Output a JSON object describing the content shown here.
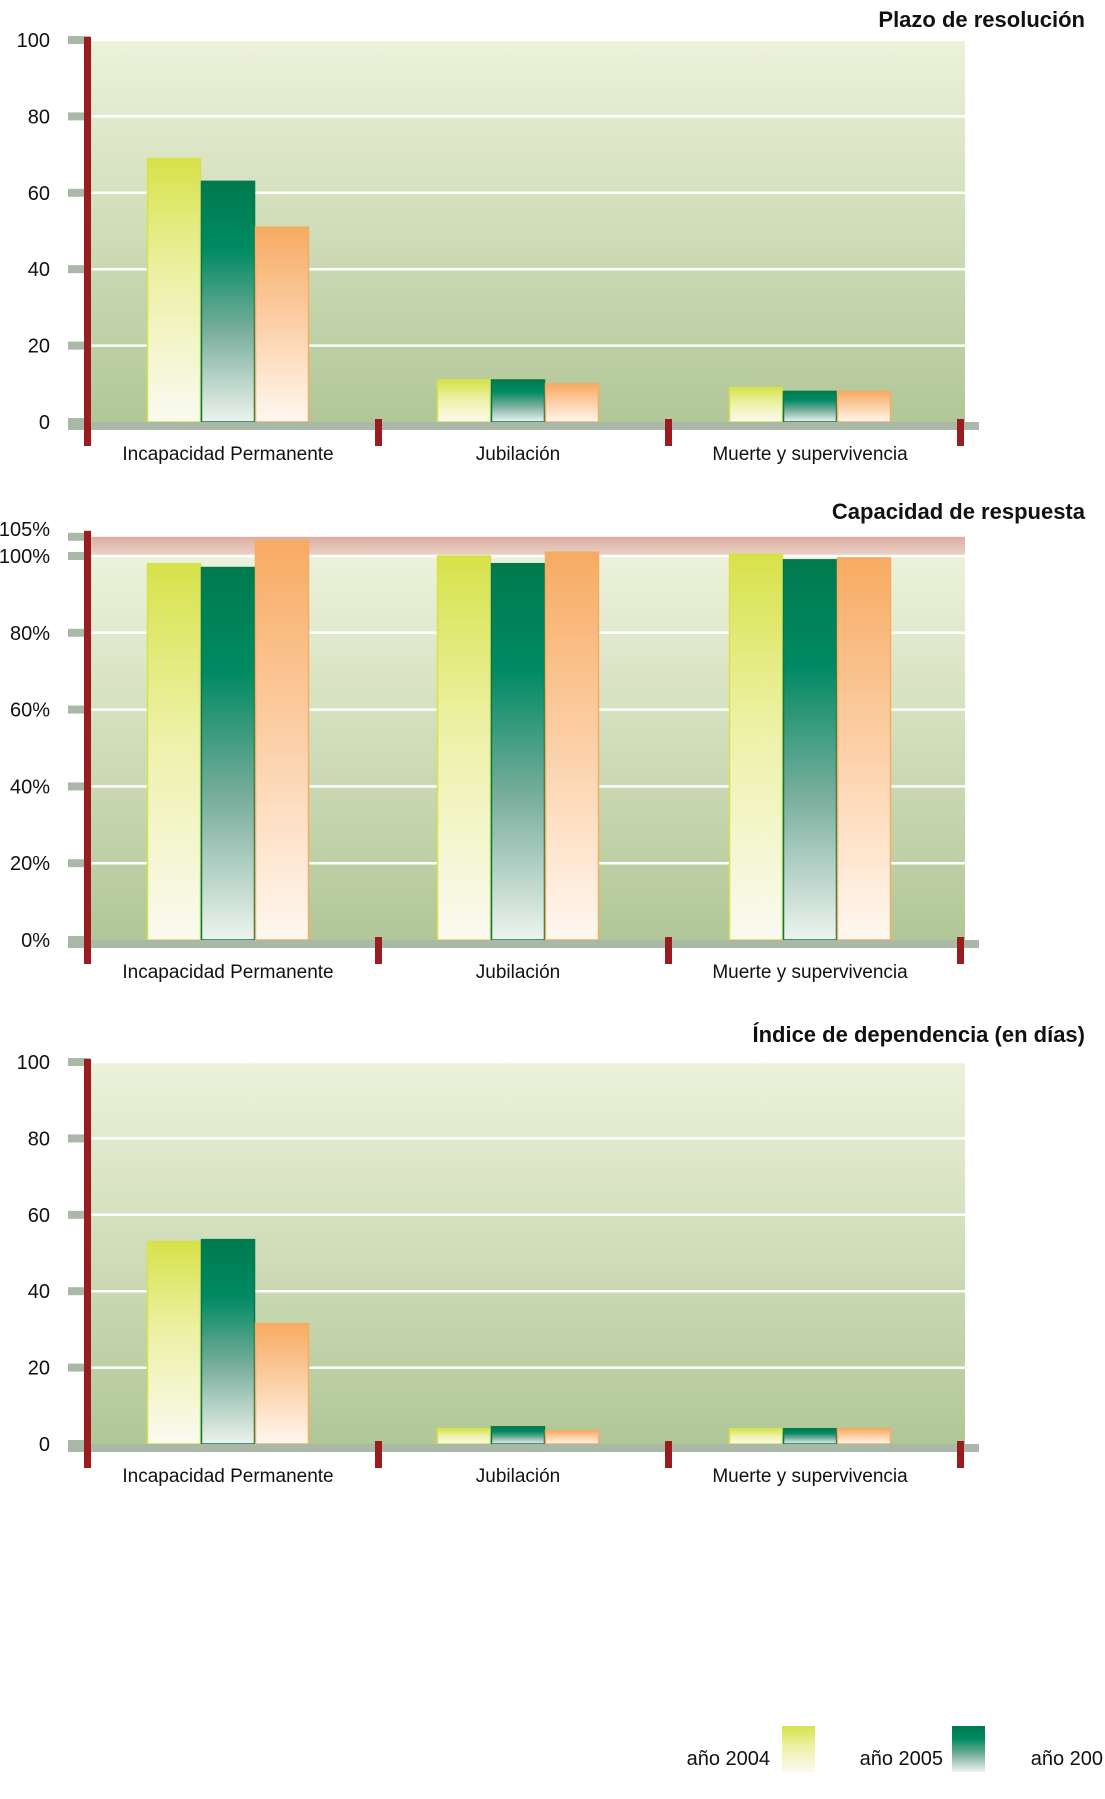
{
  "legend": [
    {
      "label": "año 2004",
      "color": "#d7e24a"
    },
    {
      "label": "año 2005",
      "color": "#007a4e"
    },
    {
      "label": "año 200",
      "color": "#f7ab62"
    }
  ],
  "colors": {
    "frame": "#9b1c1f",
    "baseline": "#a9b8a7",
    "grid": "#ffffff",
    "plot_top": "#edf2da",
    "plot_bottom": "#b1c797",
    "band": "#e2b8ad"
  },
  "chart_data": [
    {
      "type": "bar",
      "title": "Plazo de resolución",
      "categories": [
        "Incapacidad Permanente",
        "Jubilación",
        "Muerte y supervivencia"
      ],
      "series": [
        {
          "values": [
            69,
            11,
            9
          ]
        },
        {
          "values": [
            63,
            11,
            8
          ]
        },
        {
          "values": [
            51,
            10,
            8
          ]
        }
      ],
      "ylim": [
        0,
        100
      ],
      "yticks": [
        "0",
        "20",
        "40",
        "60",
        "80",
        "100"
      ],
      "grid": true
    },
    {
      "type": "bar",
      "title": "Capacidad de respuesta",
      "categories": [
        "Incapacidad Permanente",
        "Jubilación",
        "Muerte y supervivencia"
      ],
      "series": [
        {
          "values": [
            98,
            100,
            100.5
          ]
        },
        {
          "values": [
            97,
            98,
            99
          ]
        },
        {
          "values": [
            104,
            101,
            99.5
          ]
        }
      ],
      "ylim": [
        0,
        105
      ],
      "yticks": [
        "0%",
        "20%",
        "40%",
        "60%",
        "80%",
        "100%",
        "105%"
      ],
      "band": [
        100,
        105
      ],
      "grid": true
    },
    {
      "type": "bar",
      "title": "Índice de dependencia (en días)",
      "categories": [
        "Incapacidad Permanente",
        "Jubilación",
        "Muerte y supervivencia"
      ],
      "series": [
        {
          "values": [
            53,
            4,
            4
          ]
        },
        {
          "values": [
            53.5,
            4.5,
            4
          ]
        },
        {
          "values": [
            31.5,
            3.5,
            4
          ]
        }
      ],
      "ylim": [
        0,
        100
      ],
      "yticks": [
        "0",
        "20",
        "40",
        "60",
        "80",
        "100"
      ],
      "grid": true
    }
  ]
}
